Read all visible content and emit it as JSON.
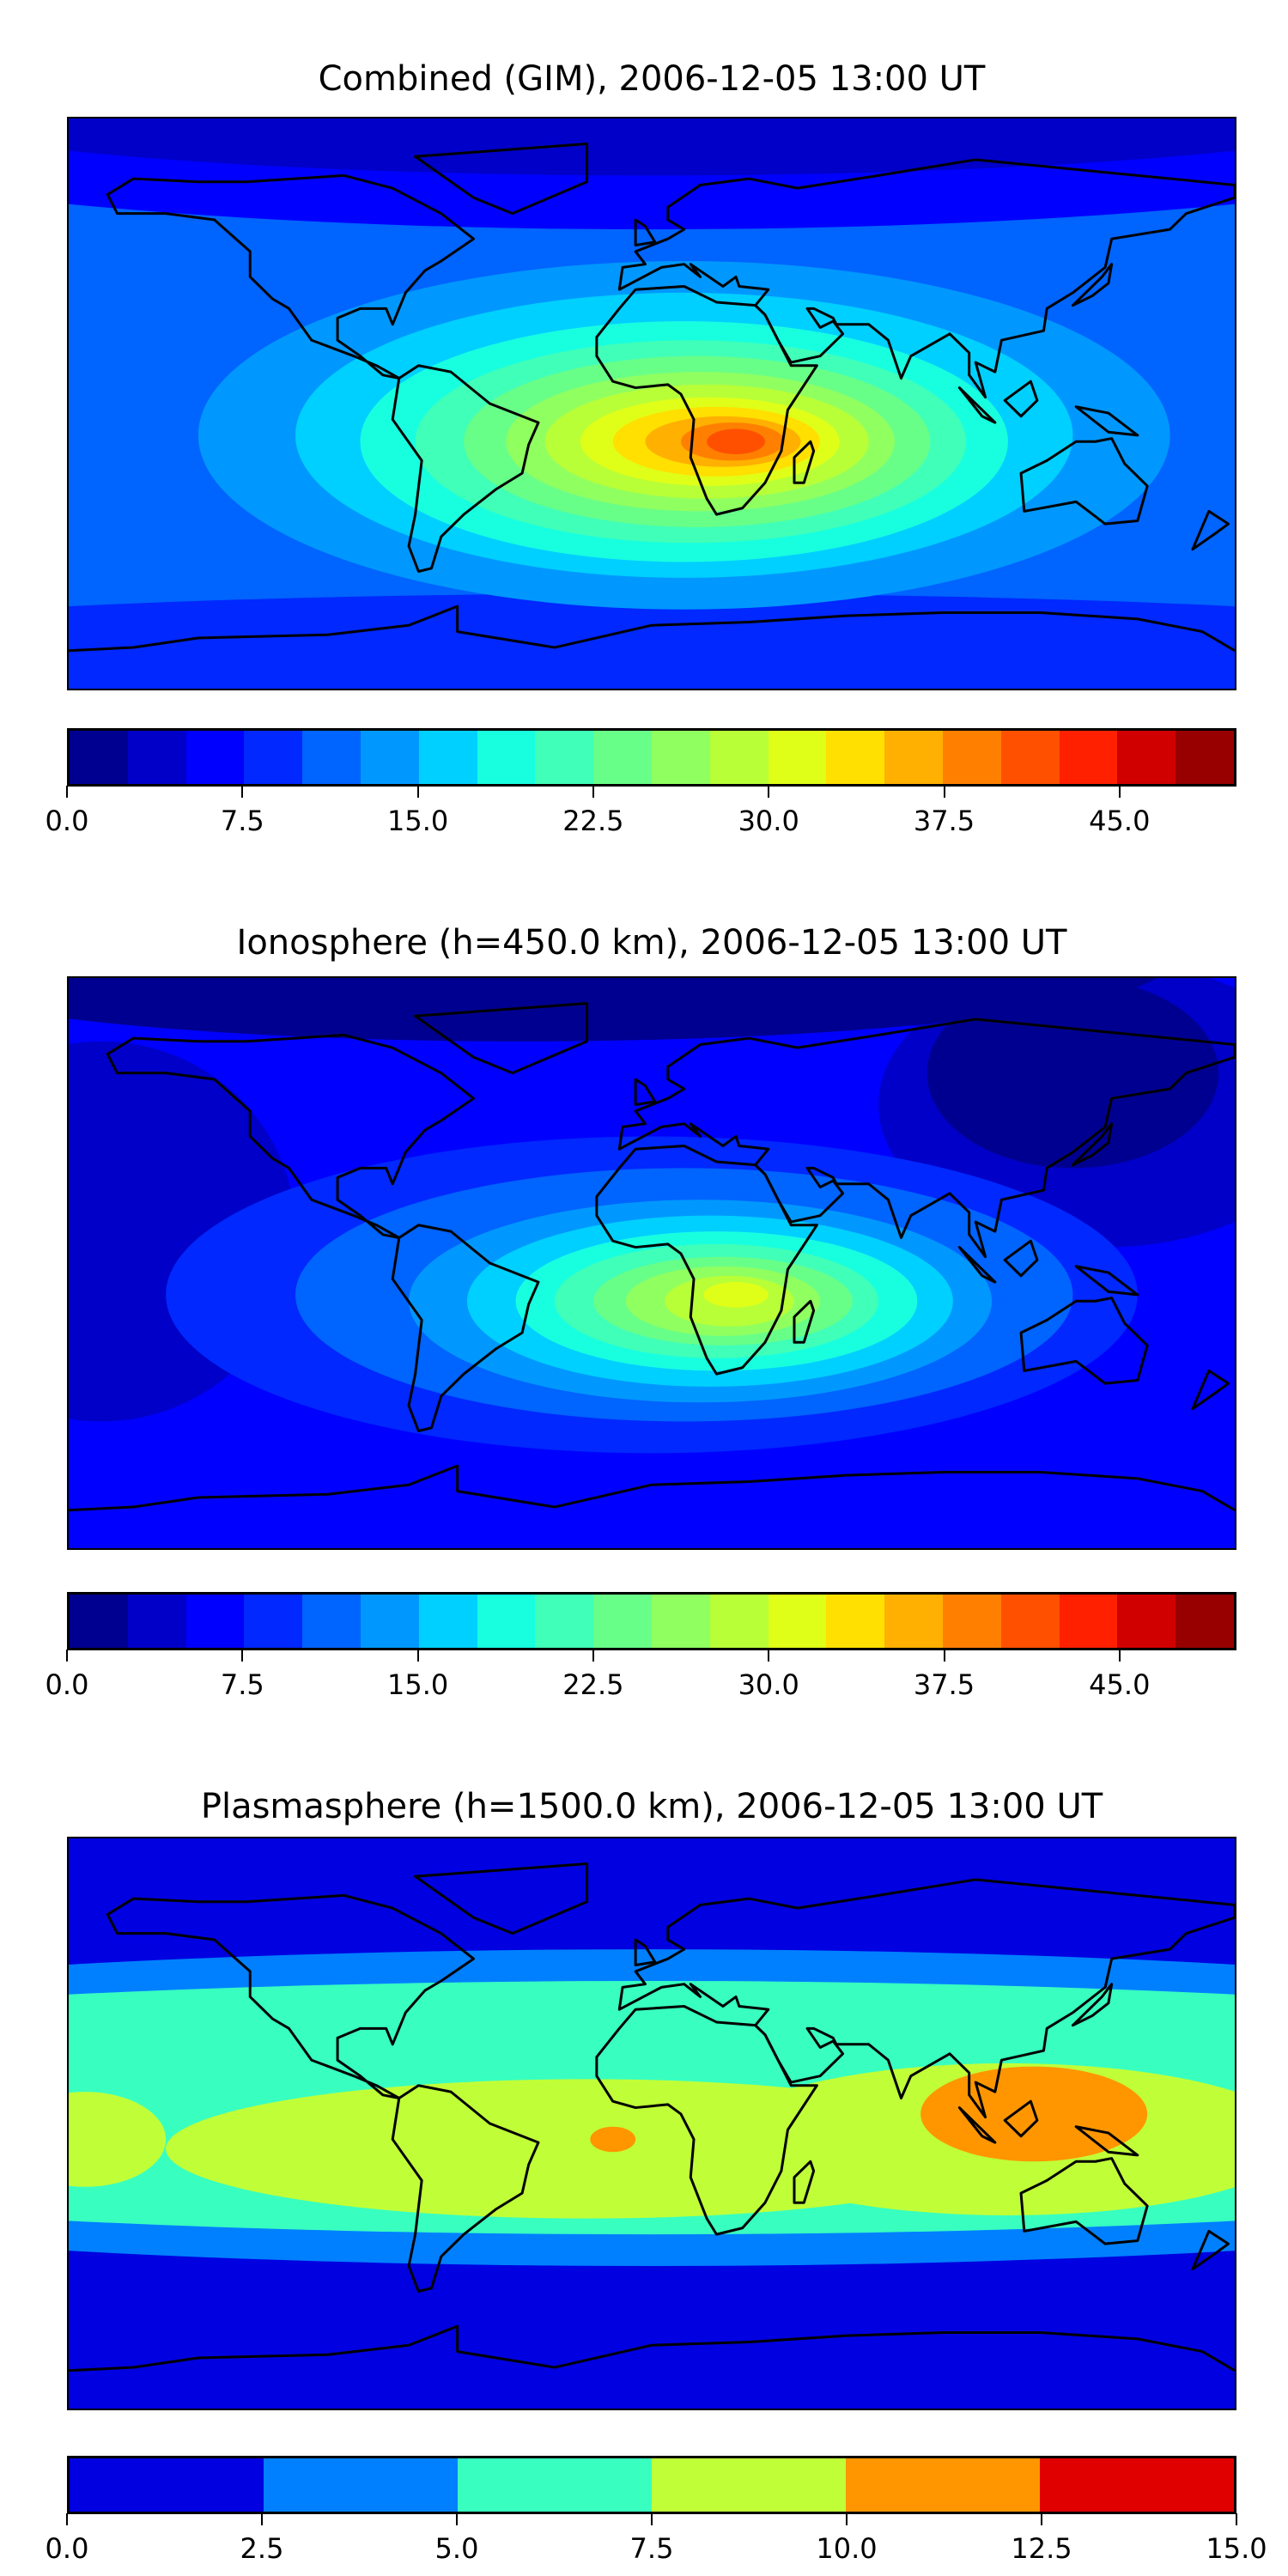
{
  "chart_data": [
    {
      "type": "heatmap",
      "title": "Combined (GIM), 2006-12-05 13:00 UT",
      "projection": "equirectangular",
      "lon_range": [
        -180,
        180
      ],
      "lat_range": [
        -90,
        90
      ],
      "colorbar": {
        "min": 0,
        "max": 50,
        "step": 2.5,
        "ticks": [
          "0.0",
          "7.5",
          "15.0",
          "22.5",
          "30.0",
          "37.5",
          "45.0"
        ],
        "tick_values": [
          0,
          7.5,
          15,
          22.5,
          30,
          37.5,
          45
        ],
        "colors": [
          "#000090",
          "#0000c8",
          "#0000ff",
          "#0028ff",
          "#0064ff",
          "#0098ff",
          "#00d0ff",
          "#18ffe0",
          "#40ffb8",
          "#68ff88",
          "#90ff60",
          "#b8ff38",
          "#e0ff18",
          "#ffe000",
          "#ffb000",
          "#ff8000",
          "#ff5000",
          "#ff2000",
          "#d00000",
          "#980000"
        ]
      },
      "base_level": 4,
      "regions": [
        {
          "level": 3,
          "lon": 0,
          "lat": -80,
          "rlon": 300,
          "rlat": 20
        },
        {
          "level": 2,
          "lon": 0,
          "lat": 95,
          "rlon": 300,
          "rlat": 40
        },
        {
          "level": 1,
          "lon": 0,
          "lat": 100,
          "rlon": 260,
          "rlat": 28
        },
        {
          "level": 5,
          "lon": 10,
          "lat": -10,
          "rlon": 150,
          "rlat": 55
        },
        {
          "level": 6,
          "lon": 10,
          "lat": -10,
          "rlon": 120,
          "rlat": 45
        },
        {
          "level": 7,
          "lon": 10,
          "lat": -12,
          "rlon": 100,
          "rlat": 38
        },
        {
          "level": 8,
          "lon": 12,
          "lat": -12,
          "rlon": 85,
          "rlat": 32
        },
        {
          "level": 9,
          "lon": 14,
          "lat": -12,
          "rlon": 72,
          "rlat": 27
        },
        {
          "level": 10,
          "lon": 15,
          "lat": -12,
          "rlon": 60,
          "rlat": 22
        },
        {
          "level": 11,
          "lon": 17,
          "lat": -12,
          "rlon": 50,
          "rlat": 18
        },
        {
          "level": 12,
          "lon": 18,
          "lat": -12,
          "rlon": 40,
          "rlat": 14
        },
        {
          "level": 13,
          "lon": 20,
          "lat": -12,
          "rlon": 32,
          "rlat": 11
        },
        {
          "level": 14,
          "lon": 22,
          "lat": -12,
          "rlon": 24,
          "rlat": 8
        },
        {
          "level": 15,
          "lon": 25,
          "lat": -12,
          "rlon": 16,
          "rlat": 6
        },
        {
          "level": 16,
          "lon": 26,
          "lat": -12,
          "rlon": 9,
          "rlat": 4
        }
      ]
    },
    {
      "type": "heatmap",
      "title": "Ionosphere  (h=450.0 km), 2006-12-05 13:00 UT",
      "projection": "equirectangular",
      "lon_range": [
        -180,
        180
      ],
      "lat_range": [
        -90,
        90
      ],
      "colorbar": {
        "min": 0,
        "max": 50,
        "step": 2.5,
        "ticks": [
          "0.0",
          "7.5",
          "15.0",
          "22.5",
          "30.0",
          "37.5",
          "45.0"
        ],
        "tick_values": [
          0,
          7.5,
          15,
          22.5,
          30,
          37.5,
          45
        ],
        "colors": [
          "#000090",
          "#0000c8",
          "#0000ff",
          "#0028ff",
          "#0064ff",
          "#0098ff",
          "#00d0ff",
          "#18ffe0",
          "#40ffb8",
          "#68ff88",
          "#90ff60",
          "#b8ff38",
          "#e0ff18",
          "#ffe000",
          "#ffb000",
          "#ff8000",
          "#ff5000",
          "#ff2000",
          "#d00000",
          "#980000"
        ]
      },
      "base_level": 2,
      "regions": [
        {
          "level": 1,
          "lon": -170,
          "lat": 10,
          "rlon": 60,
          "rlat": 60
        },
        {
          "level": 1,
          "lon": 140,
          "lat": 50,
          "rlon": 70,
          "rlat": 45
        },
        {
          "level": 0,
          "lon": 130,
          "lat": 60,
          "rlon": 45,
          "rlat": 30
        },
        {
          "level": 0,
          "lon": -40,
          "lat": 95,
          "rlon": 200,
          "rlat": 25
        },
        {
          "level": 3,
          "lon": 0,
          "lat": -10,
          "rlon": 150,
          "rlat": 50
        },
        {
          "level": 4,
          "lon": 10,
          "lat": -10,
          "rlon": 120,
          "rlat": 40
        },
        {
          "level": 5,
          "lon": 15,
          "lat": -12,
          "rlon": 90,
          "rlat": 32
        },
        {
          "level": 6,
          "lon": 18,
          "lat": -12,
          "rlon": 75,
          "rlat": 27
        },
        {
          "level": 7,
          "lon": 20,
          "lat": -12,
          "rlon": 62,
          "rlat": 22
        },
        {
          "level": 8,
          "lon": 20,
          "lat": -12,
          "rlon": 50,
          "rlat": 18
        },
        {
          "level": 9,
          "lon": 22,
          "lat": -12,
          "rlon": 40,
          "rlat": 14
        },
        {
          "level": 10,
          "lon": 22,
          "lat": -12,
          "rlon": 30,
          "rlat": 11
        },
        {
          "level": 11,
          "lon": 24,
          "lat": -12,
          "rlon": 20,
          "rlat": 8
        },
        {
          "level": 12,
          "lon": 26,
          "lat": -10,
          "rlon": 10,
          "rlat": 4
        }
      ]
    },
    {
      "type": "heatmap",
      "title": "Plasmasphere (h=1500.0 km), 2006-12-05 13:00 UT",
      "projection": "equirectangular",
      "lon_range": [
        -180,
        180
      ],
      "lat_range": [
        -90,
        90
      ],
      "colorbar": {
        "min": 0,
        "max": 15,
        "step": 2.5,
        "ticks": [
          "0.0",
          "2.5",
          "5.0",
          "7.5",
          "10.0",
          "12.5",
          "15.0"
        ],
        "tick_values": [
          0,
          2.5,
          5,
          7.5,
          10,
          12.5,
          15
        ],
        "colors": [
          "#0000e0",
          "#0080ff",
          "#38ffc0",
          "#c0ff38",
          "#ff9600",
          "#e00000"
        ]
      },
      "base_level": 0,
      "regions": [
        {
          "level": 1,
          "lon": 0,
          "lat": 5,
          "rlon": 420,
          "rlat": 50
        },
        {
          "level": 2,
          "lon": 0,
          "lat": 5,
          "rlon": 400,
          "rlat": 40
        },
        {
          "level": 3,
          "lon": -20,
          "lat": -8,
          "rlon": 130,
          "rlat": 22
        },
        {
          "level": 3,
          "lon": 110,
          "lat": -5,
          "rlon": 90,
          "rlat": 24
        },
        {
          "level": 3,
          "lon": -175,
          "lat": -5,
          "rlon": 25,
          "rlat": 15
        },
        {
          "level": 4,
          "lon": 118,
          "lat": 3,
          "rlon": 35,
          "rlat": 15
        },
        {
          "level": 4,
          "lon": -12,
          "lat": -5,
          "rlon": 7,
          "rlat": 4
        }
      ]
    }
  ]
}
